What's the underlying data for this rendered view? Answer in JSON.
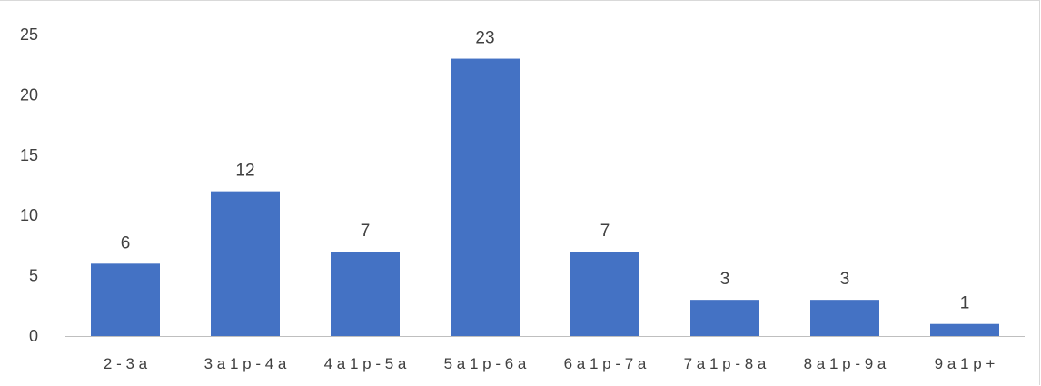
{
  "chart_data": {
    "type": "bar",
    "title": "",
    "xlabel": "",
    "ylabel": "",
    "categories": [
      "2 - 3 a",
      "3 a 1 p - 4 a",
      "4 a 1 p - 5 a",
      "5 a 1 p - 6 a",
      "6 a 1 p - 7 a",
      "7 a 1 p - 8 a",
      "8 a 1 p - 9 a",
      "9 a 1 p +"
    ],
    "values": [
      6,
      12,
      7,
      23,
      7,
      3,
      3,
      1
    ],
    "ylim": [
      0,
      25
    ],
    "yticks": [
      0,
      5,
      10,
      15,
      20,
      25
    ],
    "grid": false,
    "legend": "none",
    "bar_color": "#4472c4",
    "data_labels": true
  }
}
